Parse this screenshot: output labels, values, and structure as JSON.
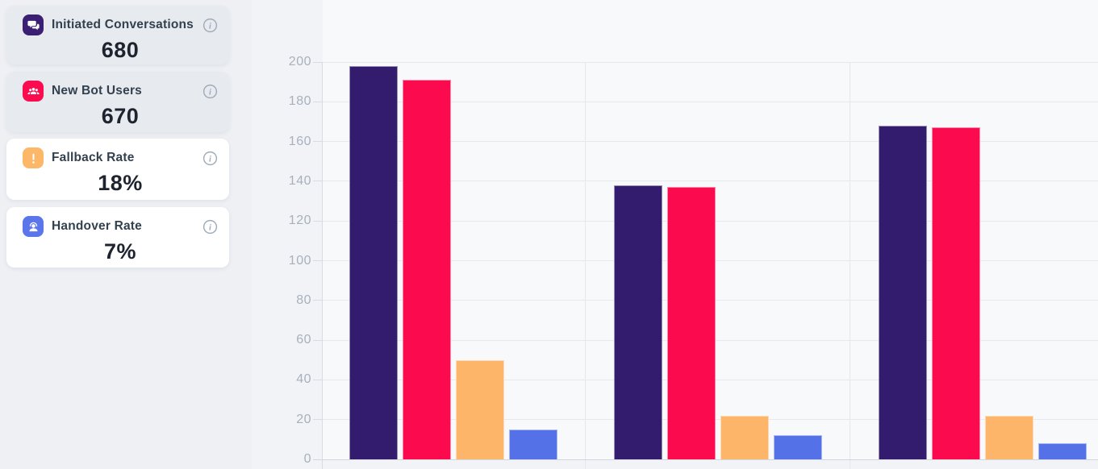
{
  "page": {
    "background": "#eef0f4"
  },
  "stat_cards": [
    {
      "label": "Initiated Conversations",
      "value": "680",
      "icon": "chat-icon",
      "icon_color": "#3b1f72",
      "card_bg": "#e7eaee",
      "info_icon": "info-icon"
    },
    {
      "label": "New Bot Users",
      "value": "670",
      "icon": "users-icon",
      "icon_color": "#fa0c4f",
      "card_bg": "#e7eaee",
      "info_icon": "info-icon"
    },
    {
      "label": "Fallback Rate",
      "value": "18%",
      "icon": "alert-icon",
      "icon_color": "#fcb768",
      "card_bg": "#ffffff",
      "info_icon": "info-icon"
    },
    {
      "label": "Handover Rate",
      "value": "7%",
      "icon": "headset-icon",
      "icon_color": "#5b76ea",
      "card_bg": "#ffffff",
      "info_icon": "info-icon"
    }
  ],
  "chart_data": {
    "type": "bar",
    "title": "",
    "xlabel": "",
    "ylabel": "",
    "ylim": [
      0,
      200
    ],
    "yticks": [
      0,
      20,
      40,
      60,
      80,
      100,
      120,
      140,
      160,
      180,
      200
    ],
    "grid": true,
    "legend_position": "none",
    "categories": [
      "",
      "",
      ""
    ],
    "series": [
      {
        "name": "Initiated Conversations",
        "color": "#331b6d",
        "values": [
          198,
          138,
          168
        ]
      },
      {
        "name": "New Bot Users",
        "color": "#fc0a4e",
        "values": [
          191,
          137,
          167
        ]
      },
      {
        "name": "Fallback Rate",
        "color": "#fdb569",
        "values": [
          50,
          22,
          22
        ]
      },
      {
        "name": "Handover Rate",
        "color": "#5571e8",
        "values": [
          15,
          12,
          8
        ]
      }
    ],
    "axis_colors": {
      "tick_label": "#a7b1bd",
      "gridline": "#e7e9ee",
      "axis_line": "#d3d6dd"
    }
  }
}
